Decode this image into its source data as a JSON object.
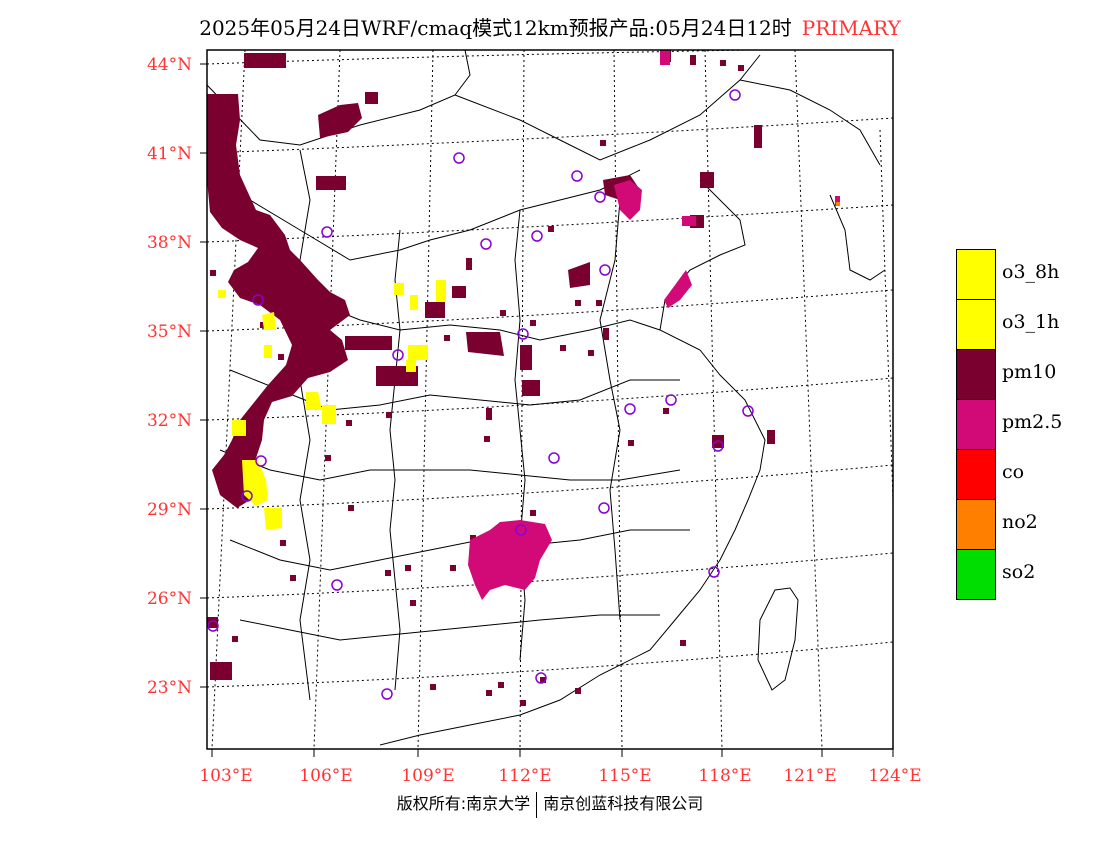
{
  "title": {
    "main": "2025年05月24日WRF/cmaq模式12km预报产品:05月24日12时",
    "tag": "PRIMARY"
  },
  "colors": {
    "pm10": "#7a0030",
    "pm25": "#d10a78",
    "o3": "#ffff00",
    "co": "#ff0000",
    "no2": "#ff8000",
    "so2": "#00dd00",
    "label_red": "#ff3333",
    "station_circle": "#8a00d4"
  },
  "map": {
    "lat_labels": [
      "44°N",
      "41°N",
      "38°N",
      "35°N",
      "32°N",
      "29°N",
      "26°N",
      "23°N"
    ],
    "lon_labels": [
      "103°E",
      "106°E",
      "109°E",
      "112°E",
      "115°E",
      "118°E",
      "121°E",
      "124°E"
    ]
  },
  "legend": [
    {
      "label": "o3_8h",
      "color": "#ffff00"
    },
    {
      "label": "o3_1h",
      "color": "#ffff00"
    },
    {
      "label": "pm10",
      "color": "#7a0030"
    },
    {
      "label": "pm2.5",
      "color": "#d10a78"
    },
    {
      "label": "co",
      "color": "#ff0000"
    },
    {
      "label": "no2",
      "color": "#ff8000"
    },
    {
      "label": "so2",
      "color": "#00dd00"
    }
  ],
  "footer": {
    "left": "版权所有:南京大学",
    "right": "南京创蓝科技有限公司"
  }
}
